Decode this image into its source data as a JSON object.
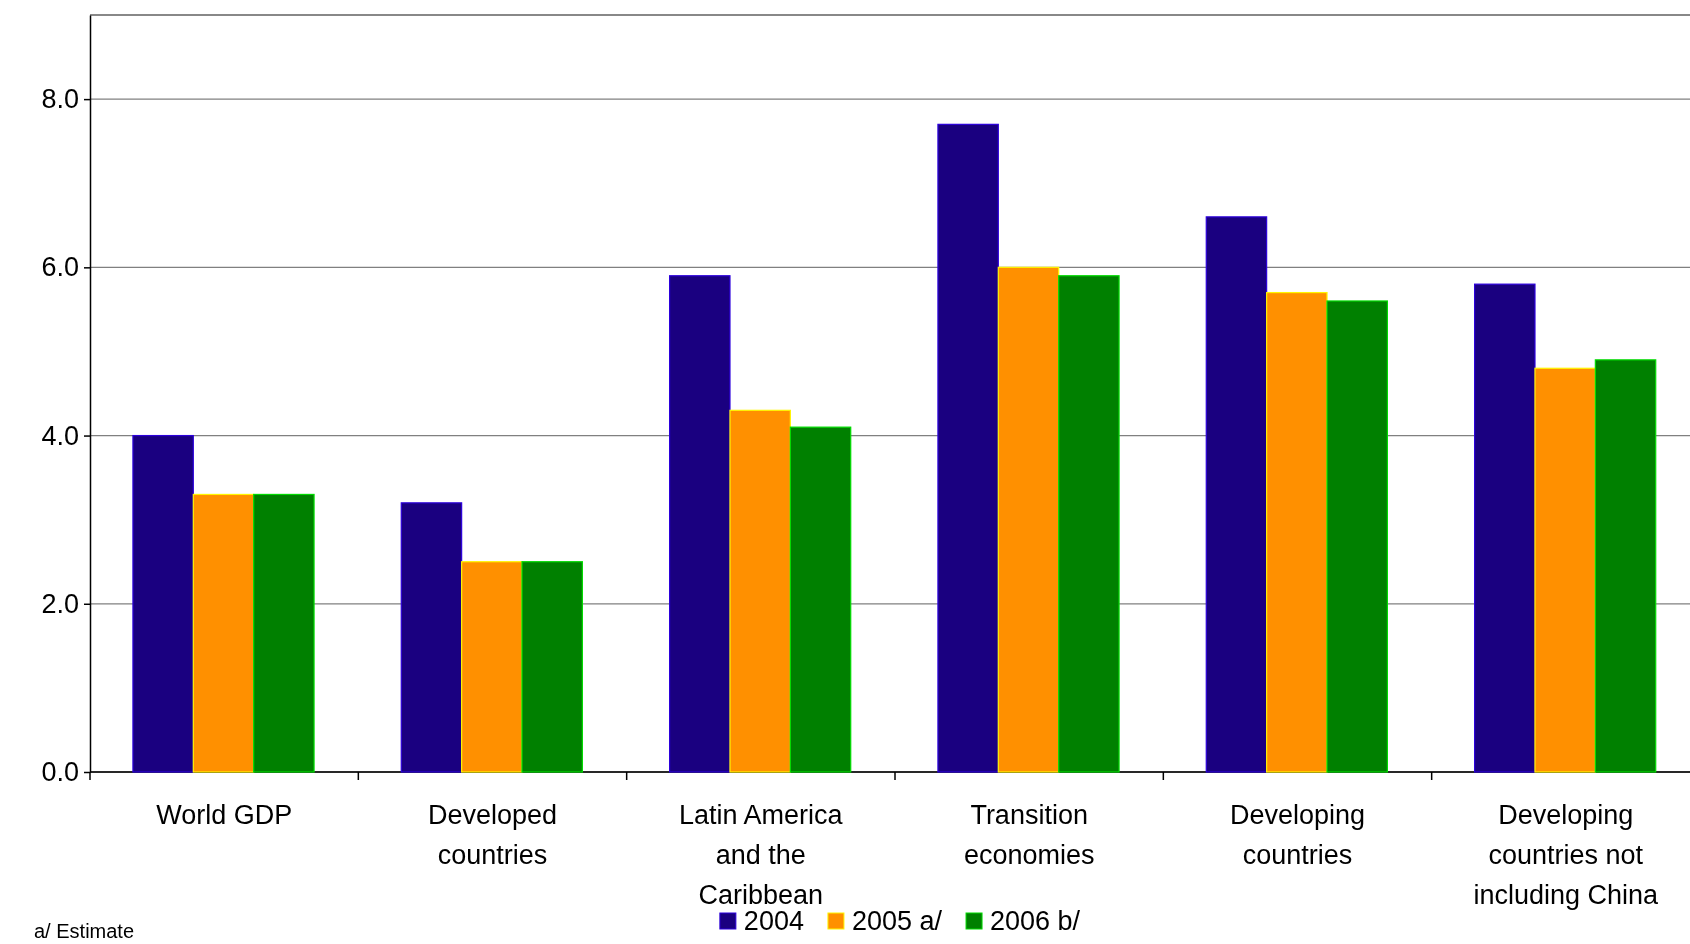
{
  "chart_data": {
    "type": "bar",
    "categories": [
      "World GDP",
      "Developed countries",
      "Latin America and the Caribbean",
      "Transition economies",
      "Developing countries",
      "Developing countries not including China"
    ],
    "series": [
      {
        "name": "2004",
        "color": "#1a0080",
        "values": [
          4.0,
          3.2,
          5.9,
          7.7,
          6.6,
          5.8
        ]
      },
      {
        "name": "2005 a/",
        "color": "#ff9000",
        "values": [
          3.3,
          2.5,
          4.3,
          6.0,
          5.7,
          4.8
        ]
      },
      {
        "name": "2006 b/",
        "color": "#008000",
        "values": [
          3.3,
          2.5,
          4.1,
          5.9,
          5.6,
          4.9
        ]
      }
    ],
    "ylim": [
      0,
      9
    ],
    "yticks": [
      {
        "value": 0,
        "label": "0.0"
      },
      {
        "value": 2,
        "label": "2.0"
      },
      {
        "value": 4,
        "label": "4.0"
      },
      {
        "value": 6,
        "label": "6.0"
      },
      {
        "value": 8,
        "label": "8.0"
      }
    ],
    "grid": "y",
    "legend": "bottom",
    "annotations": [
      "a/ Estimate"
    ]
  }
}
